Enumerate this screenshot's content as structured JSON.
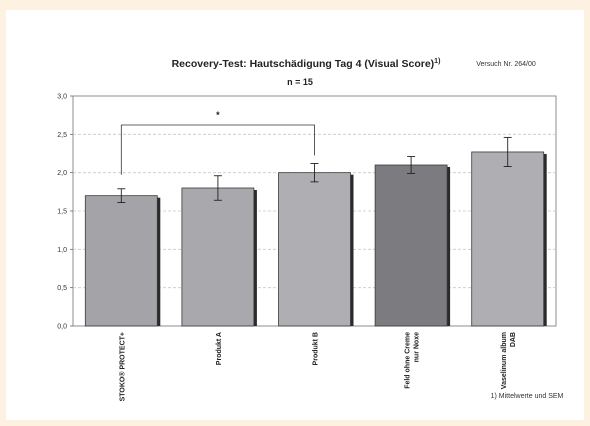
{
  "chart_data": {
    "type": "bar",
    "title": "Recovery-Test: Hautschädigung Tag 4 (Visual Score)",
    "title_superscript": "1)",
    "subtitle": "n = 15",
    "study_note": "Versuch Nr. 264/00",
    "footnote": "1) Mittelwerte und SEM",
    "categories": [
      [
        "STOKO® PROTECT+"
      ],
      [
        "Produkt A"
      ],
      [
        "Produkt B"
      ],
      [
        "Feld ohne Creme",
        "nur Noxe"
      ],
      [
        "Vaselinum album",
        "DAB"
      ]
    ],
    "values": [
      1.7,
      1.8,
      2.0,
      2.1,
      2.27
    ],
    "errors": [
      0.09,
      0.16,
      0.12,
      0.11,
      0.19
    ],
    "bar_colors": [
      "#a3a3a8",
      "#a8a8ad",
      "#aeaeb3",
      "#7b7b80",
      "#aeaeb3"
    ],
    "yticks": [
      "0,0",
      "0,5",
      "1,0",
      "1,5",
      "2,0",
      "2,5",
      "3,0"
    ],
    "ylim": [
      0,
      3
    ],
    "grid": true,
    "significance": {
      "from": 0,
      "to": 2,
      "label": "*"
    }
  }
}
